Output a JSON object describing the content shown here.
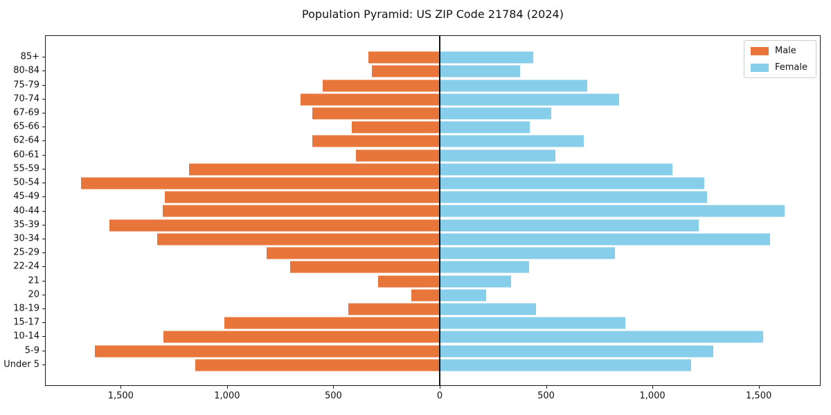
{
  "chart_data": {
    "type": "bar",
    "orientation": "horizontal_population_pyramid",
    "title": "Population Pyramid: US ZIP Code 21784 (2024)",
    "categories": [
      "85+",
      "80-84",
      "75-79",
      "70-74",
      "67-69",
      "65-66",
      "62-64",
      "60-61",
      "55-59",
      "50-54",
      "45-49",
      "40-44",
      "35-39",
      "30-34",
      "25-29",
      "22-24",
      "21",
      "20",
      "18-19",
      "15-17",
      "10-14",
      "5-9",
      "Under 5"
    ],
    "categories_note": "listed top-to-bottom on y-axis",
    "series": [
      {
        "name": "Male",
        "side": "left",
        "color": "#e8763a",
        "values": [
          335,
          320,
          550,
          655,
          600,
          415,
          600,
          395,
          1180,
          1690,
          1295,
          1305,
          1555,
          1330,
          815,
          705,
          290,
          135,
          430,
          1015,
          1300,
          1625,
          1150
        ]
      },
      {
        "name": "Female",
        "side": "right",
        "color": "#87ceeb",
        "values": [
          440,
          380,
          695,
          845,
          525,
          425,
          680,
          545,
          1095,
          1245,
          1260,
          1625,
          1220,
          1555,
          825,
          420,
          335,
          220,
          455,
          875,
          1525,
          1290,
          1185
        ]
      }
    ],
    "x_axis": {
      "xlim": [
        -1856,
        1791
      ],
      "ticks": [
        {
          "value": -1500,
          "label": "1,500"
        },
        {
          "value": -1000,
          "label": "1,000"
        },
        {
          "value": -500,
          "label": "500"
        },
        {
          "value": 0,
          "label": "0"
        },
        {
          "value": 500,
          "label": "500"
        },
        {
          "value": 1000,
          "label": "1,000"
        },
        {
          "value": 1500,
          "label": "1,500"
        }
      ]
    },
    "legend": {
      "position": "upper right",
      "entries": [
        "Male",
        "Female"
      ]
    },
    "grid": false,
    "zero_line": true
  }
}
